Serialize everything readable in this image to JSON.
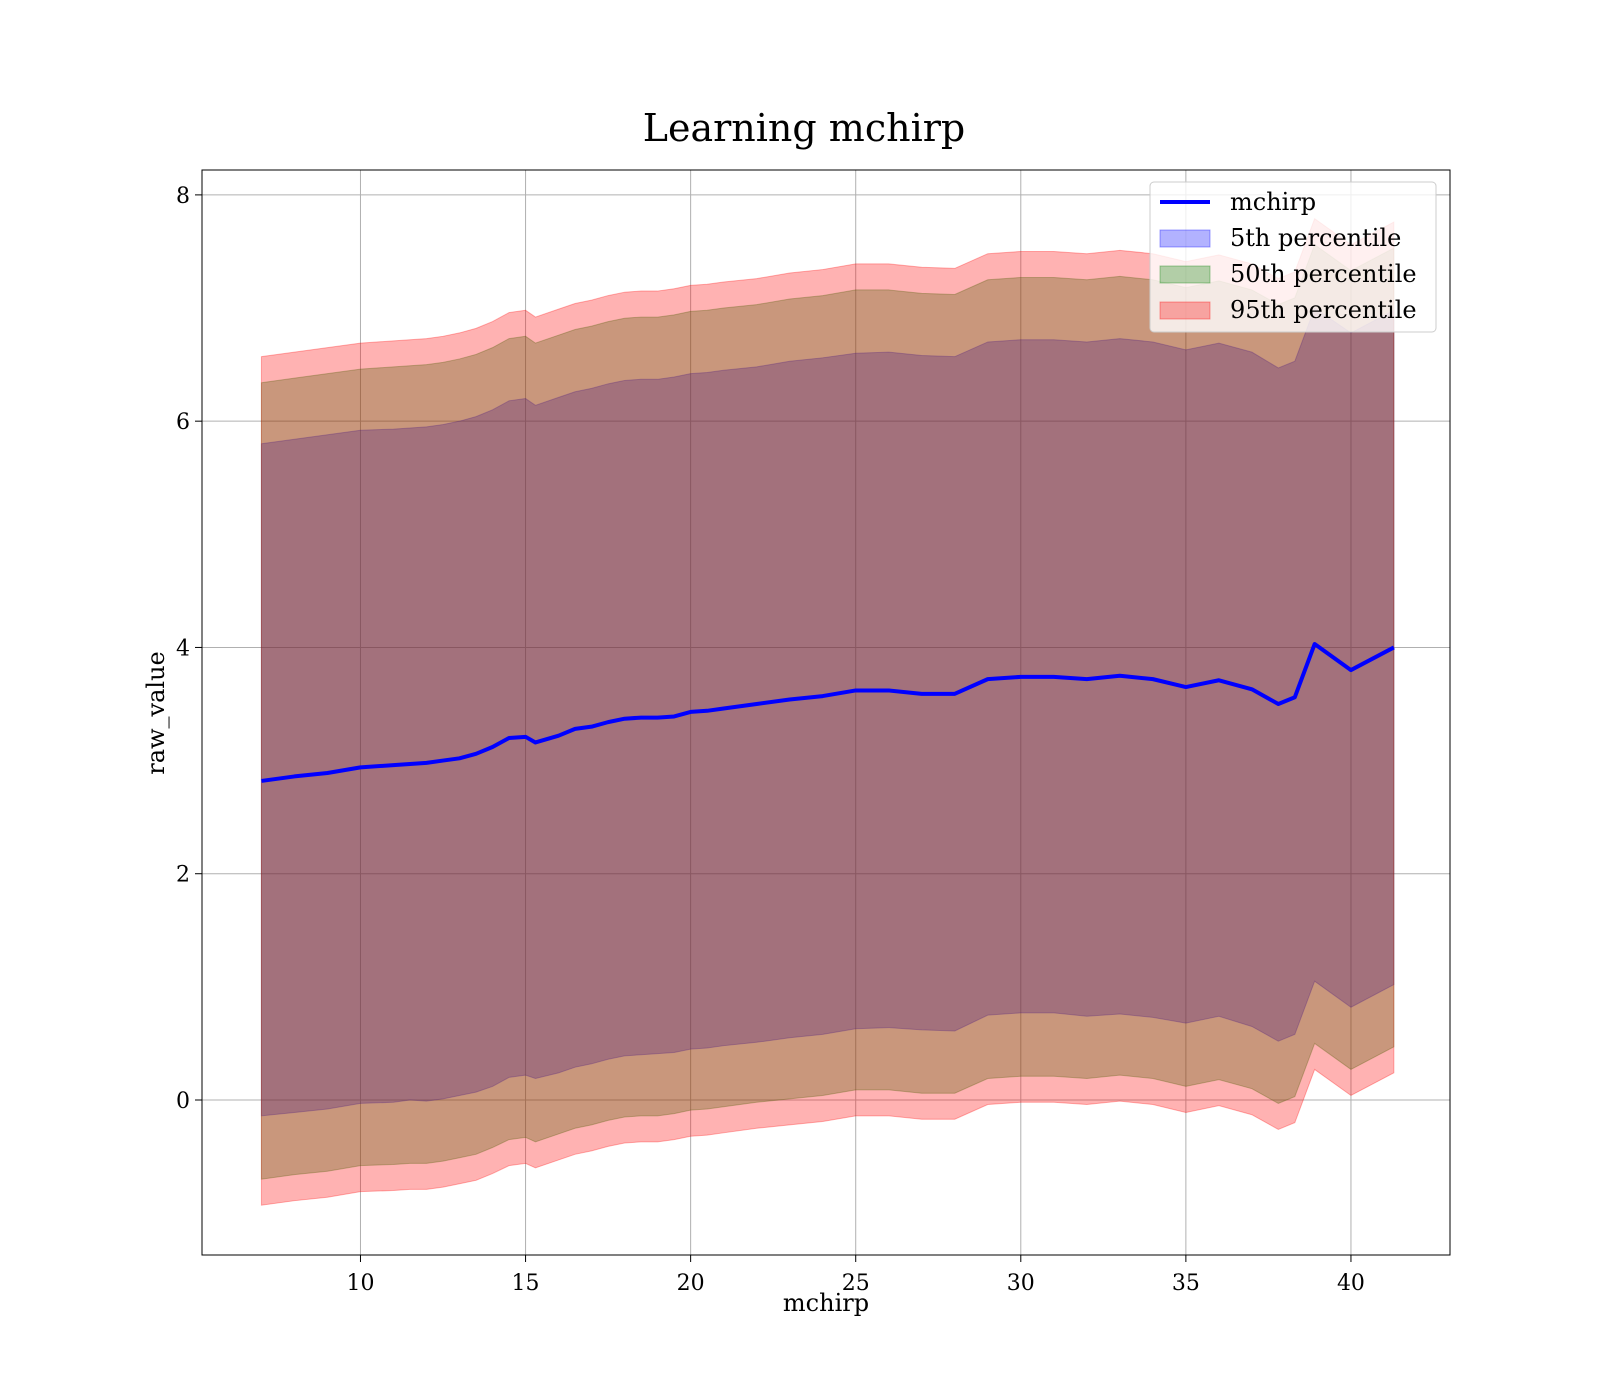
{
  "chart_data": {
    "type": "line",
    "title": "Learning mchirp",
    "xlabel": "mchirp",
    "ylabel": "raw_value",
    "xlim": [
      5.2,
      43.0
    ],
    "ylim": [
      -1.37,
      8.22
    ],
    "xticks": [
      10,
      15,
      20,
      25,
      30,
      35,
      40
    ],
    "yticks": [
      0,
      2,
      4,
      6,
      8
    ],
    "grid": true,
    "legend_position": "top-right",
    "x": [
      7.0,
      8.0,
      9.0,
      10.0,
      11.0,
      11.5,
      12.0,
      12.5,
      13.0,
      13.5,
      14.0,
      14.5,
      15.0,
      15.3,
      16.0,
      16.5,
      17.0,
      17.5,
      18.0,
      18.5,
      19.0,
      19.5,
      20.0,
      20.5,
      21.0,
      22.0,
      23.0,
      24.0,
      25.0,
      26.0,
      27.0,
      28.0,
      29.0,
      30.0,
      31.0,
      32.0,
      33.0,
      34.0,
      35.0,
      36.0,
      37.0,
      37.8,
      38.3,
      38.9,
      40.0,
      41.3
    ],
    "series": [
      {
        "name": "mchirp",
        "kind": "line",
        "color": "#0000ff",
        "values": [
          2.82,
          2.86,
          2.89,
          2.94,
          2.96,
          2.97,
          2.98,
          3.0,
          3.02,
          3.06,
          3.12,
          3.2,
          3.21,
          3.16,
          3.22,
          3.28,
          3.3,
          3.34,
          3.37,
          3.38,
          3.38,
          3.39,
          3.43,
          3.44,
          3.46,
          3.5,
          3.54,
          3.57,
          3.62,
          3.62,
          3.59,
          3.59,
          3.72,
          3.74,
          3.74,
          3.72,
          3.75,
          3.72,
          3.65,
          3.71,
          3.63,
          3.5,
          3.56,
          4.03,
          3.8,
          4.0
        ]
      },
      {
        "name": "5th percentile",
        "kind": "band",
        "color": "#0000ff",
        "lower": [
          -0.14,
          -0.11,
          -0.08,
          -0.03,
          -0.02,
          0.0,
          -0.01,
          0.01,
          0.04,
          0.07,
          0.12,
          0.2,
          0.22,
          0.19,
          0.24,
          0.29,
          0.32,
          0.36,
          0.39,
          0.4,
          0.41,
          0.42,
          0.45,
          0.46,
          0.48,
          0.51,
          0.55,
          0.58,
          0.63,
          0.64,
          0.62,
          0.61,
          0.75,
          0.77,
          0.77,
          0.74,
          0.76,
          0.73,
          0.68,
          0.74,
          0.65,
          0.52,
          0.58,
          1.05,
          0.82,
          1.02
        ],
        "upper": [
          5.8,
          5.84,
          5.88,
          5.92,
          5.93,
          5.94,
          5.95,
          5.97,
          6.0,
          6.04,
          6.1,
          6.18,
          6.2,
          6.14,
          6.21,
          6.26,
          6.29,
          6.33,
          6.36,
          6.37,
          6.37,
          6.39,
          6.42,
          6.43,
          6.45,
          6.48,
          6.53,
          6.56,
          6.6,
          6.61,
          6.58,
          6.57,
          6.7,
          6.72,
          6.72,
          6.7,
          6.73,
          6.7,
          6.63,
          6.69,
          6.61,
          6.47,
          6.53,
          7.0,
          6.78,
          6.98
        ]
      },
      {
        "name": "50th percentile",
        "kind": "band",
        "color": "#008000",
        "lower": [
          -0.7,
          -0.66,
          -0.63,
          -0.58,
          -0.57,
          -0.56,
          -0.56,
          -0.54,
          -0.51,
          -0.48,
          -0.42,
          -0.35,
          -0.33,
          -0.37,
          -0.3,
          -0.25,
          -0.22,
          -0.18,
          -0.15,
          -0.14,
          -0.14,
          -0.12,
          -0.09,
          -0.08,
          -0.06,
          -0.02,
          0.01,
          0.04,
          0.09,
          0.09,
          0.06,
          0.06,
          0.19,
          0.21,
          0.21,
          0.19,
          0.22,
          0.19,
          0.12,
          0.18,
          0.1,
          -0.03,
          0.03,
          0.5,
          0.27,
          0.47
        ],
        "upper": [
          6.34,
          6.38,
          6.42,
          6.46,
          6.48,
          6.49,
          6.5,
          6.52,
          6.55,
          6.59,
          6.65,
          6.73,
          6.75,
          6.69,
          6.76,
          6.81,
          6.84,
          6.88,
          6.91,
          6.92,
          6.92,
          6.94,
          6.97,
          6.98,
          7.0,
          7.03,
          7.08,
          7.11,
          7.16,
          7.16,
          7.13,
          7.12,
          7.25,
          7.27,
          7.27,
          7.25,
          7.28,
          7.25,
          7.18,
          7.24,
          7.16,
          7.03,
          7.09,
          7.56,
          7.33,
          7.53
        ]
      },
      {
        "name": "95th percentile",
        "kind": "band",
        "color": "#ff0000",
        "lower": [
          -0.93,
          -0.89,
          -0.86,
          -0.81,
          -0.8,
          -0.79,
          -0.79,
          -0.77,
          -0.74,
          -0.71,
          -0.65,
          -0.58,
          -0.56,
          -0.6,
          -0.53,
          -0.48,
          -0.45,
          -0.41,
          -0.38,
          -0.37,
          -0.37,
          -0.35,
          -0.32,
          -0.31,
          -0.29,
          -0.25,
          -0.22,
          -0.19,
          -0.14,
          -0.14,
          -0.17,
          -0.17,
          -0.04,
          -0.02,
          -0.02,
          -0.04,
          -0.01,
          -0.04,
          -0.11,
          -0.05,
          -0.13,
          -0.26,
          -0.2,
          0.27,
          0.04,
          0.24
        ],
        "upper": [
          6.57,
          6.61,
          6.65,
          6.69,
          6.71,
          6.72,
          6.73,
          6.75,
          6.78,
          6.82,
          6.88,
          6.96,
          6.98,
          6.92,
          6.99,
          7.04,
          7.07,
          7.11,
          7.14,
          7.15,
          7.15,
          7.17,
          7.2,
          7.21,
          7.23,
          7.26,
          7.31,
          7.34,
          7.39,
          7.39,
          7.36,
          7.35,
          7.48,
          7.5,
          7.5,
          7.48,
          7.51,
          7.48,
          7.41,
          7.47,
          7.39,
          7.26,
          7.32,
          7.79,
          7.56,
          7.76
        ]
      }
    ]
  }
}
